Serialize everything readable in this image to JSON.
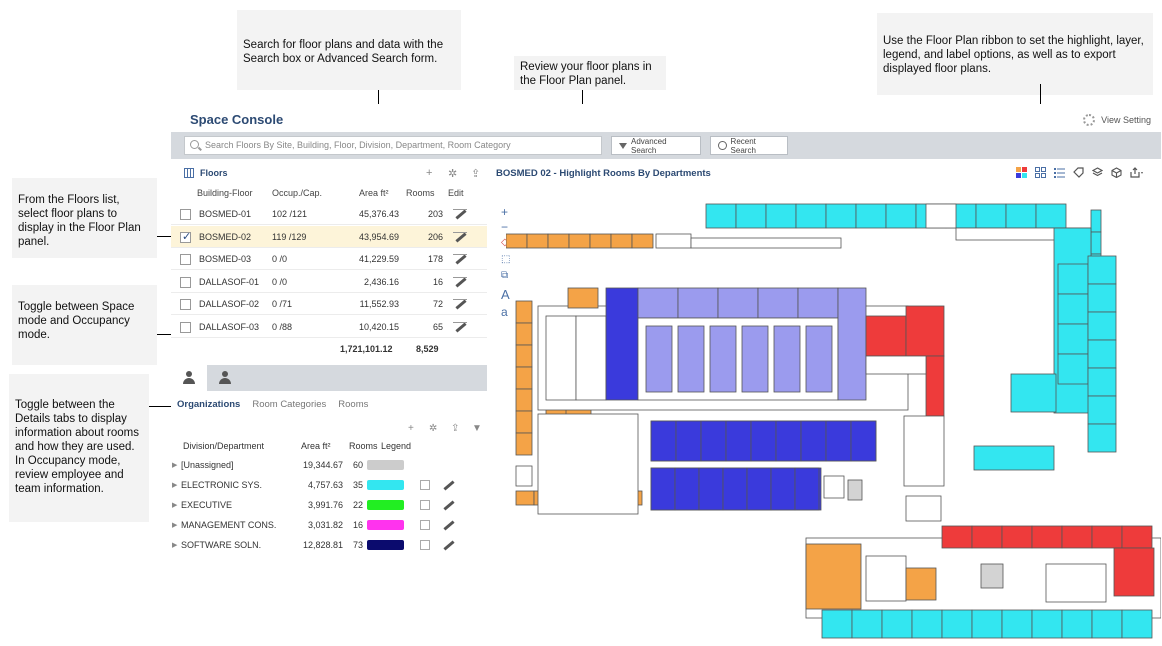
{
  "callouts": {
    "search": "Search for floor plans and data with the Search box or Advanced Search form.",
    "floorplan": "Review your floor plans in the Floor Plan panel.",
    "ribbon": "Use the Floor Plan ribbon to set the highlight, layer, legend, and label options, as well as to export displayed floor plans.",
    "floors": "From the Floors list, select floor plans to display in the Floor Plan panel.",
    "mode": "Toggle between Space mode and Occupancy mode.",
    "details": "Toggle between the Details tabs to display information about rooms and how they are used. In Occupancy mode, review employee and team information."
  },
  "app": {
    "title": "Space Console",
    "view_setting": "View Setting",
    "search_placeholder": "Search Floors By Site, Building, Floor, Division, Department, Room Category",
    "advanced_search": "Advanced Search",
    "recent_search": "Recent Search"
  },
  "floors": {
    "title": "Floors",
    "columns": [
      "Building-Floor",
      "Occup./Cap.",
      "Area ft²",
      "Rooms",
      "Edit"
    ],
    "rows": [
      {
        "name": "BOSMED-01",
        "occ": "102 /121",
        "area": "45,376.43",
        "rooms": "203",
        "checked": false
      },
      {
        "name": "BOSMED-02",
        "occ": "119 /129",
        "area": "43,954.69",
        "rooms": "206",
        "checked": true
      },
      {
        "name": "BOSMED-03",
        "occ": "0 /0",
        "area": "41,229.59",
        "rooms": "178",
        "checked": false
      },
      {
        "name": "DALLASOF-01",
        "occ": "0 /0",
        "area": "2,436.16",
        "rooms": "16",
        "checked": false
      },
      {
        "name": "DALLASOF-02",
        "occ": "0 /71",
        "area": "11,552.93",
        "rooms": "72",
        "checked": false
      },
      {
        "name": "DALLASOF-03",
        "occ": "0 /88",
        "area": "10,420.15",
        "rooms": "65",
        "checked": false
      }
    ],
    "total_area": "1,721,101.12",
    "total_rooms": "8,529"
  },
  "details": {
    "tabs": [
      "Organizations",
      "Room Categories",
      "Rooms"
    ],
    "columns": [
      "Division/Department",
      "Area ft²",
      "Rooms",
      "Legend"
    ],
    "rows": [
      {
        "name": "[Unassigned]",
        "area": "19,344.67",
        "rooms": "60",
        "color": "#cccccc",
        "actions": false
      },
      {
        "name": "ELECTRONIC SYS.",
        "area": "4,757.63",
        "rooms": "35",
        "color": "#33e6f0",
        "actions": true
      },
      {
        "name": "EXECUTIVE",
        "area": "3,991.76",
        "rooms": "22",
        "color": "#22ee22",
        "actions": true
      },
      {
        "name": "MANAGEMENT CONS.",
        "area": "3,031.82",
        "rooms": "16",
        "color": "#ff33ee",
        "actions": true
      },
      {
        "name": "SOFTWARE SOLN.",
        "area": "12,828.81",
        "rooms": "73",
        "color": "#0b0b6e",
        "actions": true
      }
    ]
  },
  "floorplan": {
    "title": "BOSMED 02 - Highlight Rooms By Departments",
    "colors": {
      "cyan": "#33e6f0",
      "blue": "#3a3adc",
      "lavender": "#9b9bee",
      "orange": "#f4a347",
      "red": "#ee3b3b",
      "gray": "#d3d3d3",
      "wall": "#555555"
    }
  }
}
